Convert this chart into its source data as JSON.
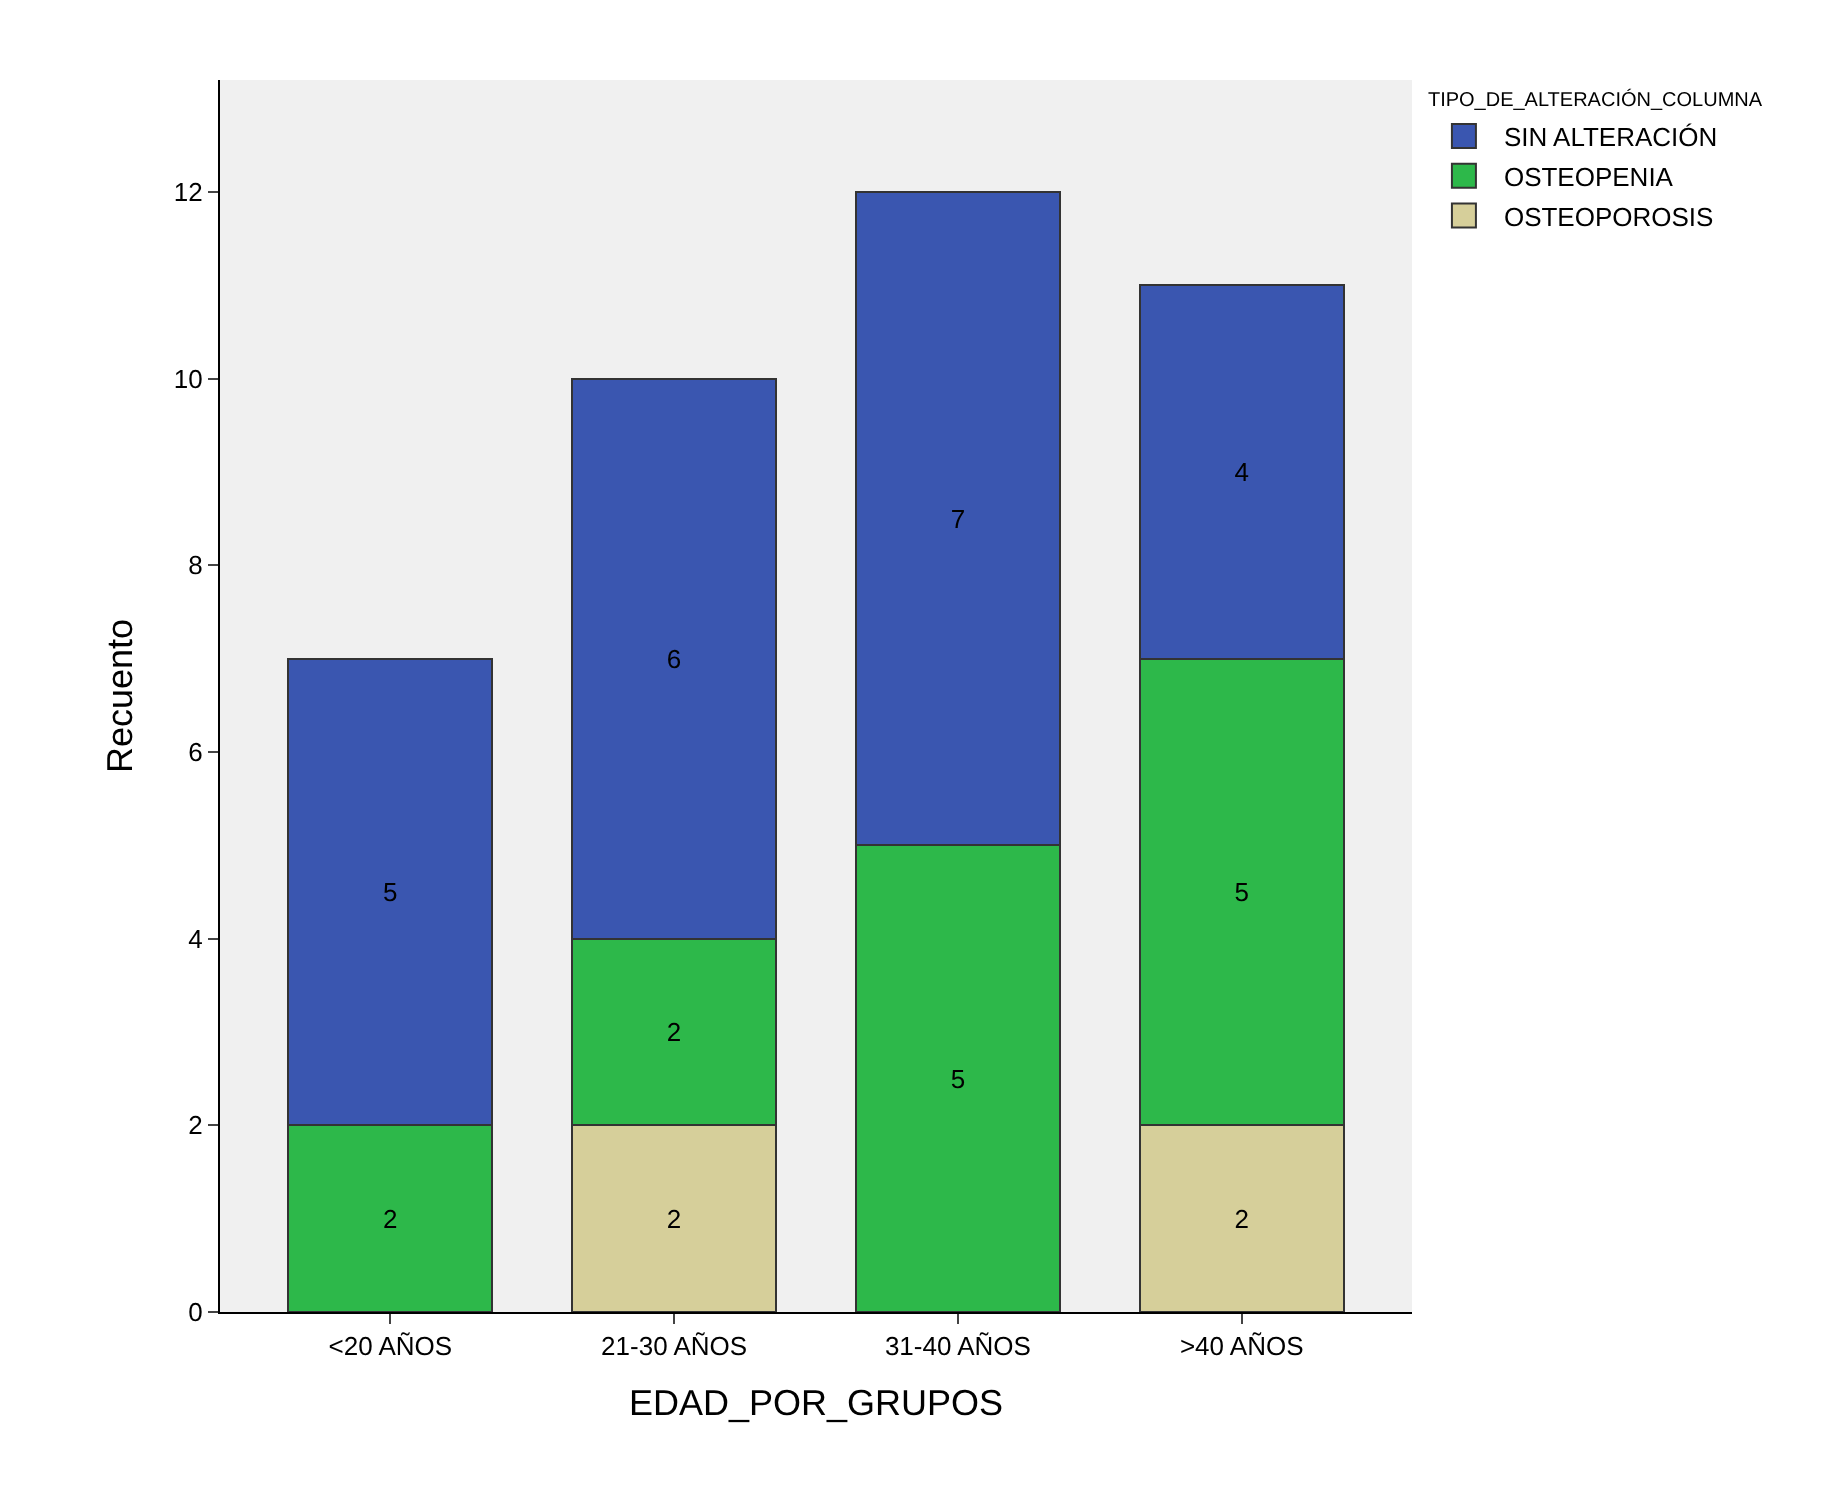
{
  "chart_data": {
    "type": "bar",
    "stacked": true,
    "xlabel": "EDAD_POR_GRUPOS",
    "ylabel": "Recuento",
    "legend_title": "TIPO_DE_ALTERACIÓN_COLUMNA",
    "legend": "top right",
    "categories": [
      "<20 AÑOS",
      "21-30 AÑOS",
      "31-40 AÑOS",
      ">40 AÑOS"
    ],
    "series": [
      {
        "name": "OSTEOPOROSIS",
        "color": "#d6cf9a",
        "values": [
          null,
          2,
          null,
          2
        ]
      },
      {
        "name": "OSTEOPENIA",
        "color": "#2db84a",
        "values": [
          2,
          2,
          5,
          5
        ]
      },
      {
        "name": "SIN ALTERACIÓN",
        "color": "#3a56b0",
        "values": [
          5,
          6,
          7,
          4
        ]
      }
    ],
    "ylim": [
      0,
      13.2
    ],
    "yticks": [
      0,
      2,
      4,
      6,
      8,
      10,
      12
    ],
    "grid": false,
    "data_labels": true
  }
}
